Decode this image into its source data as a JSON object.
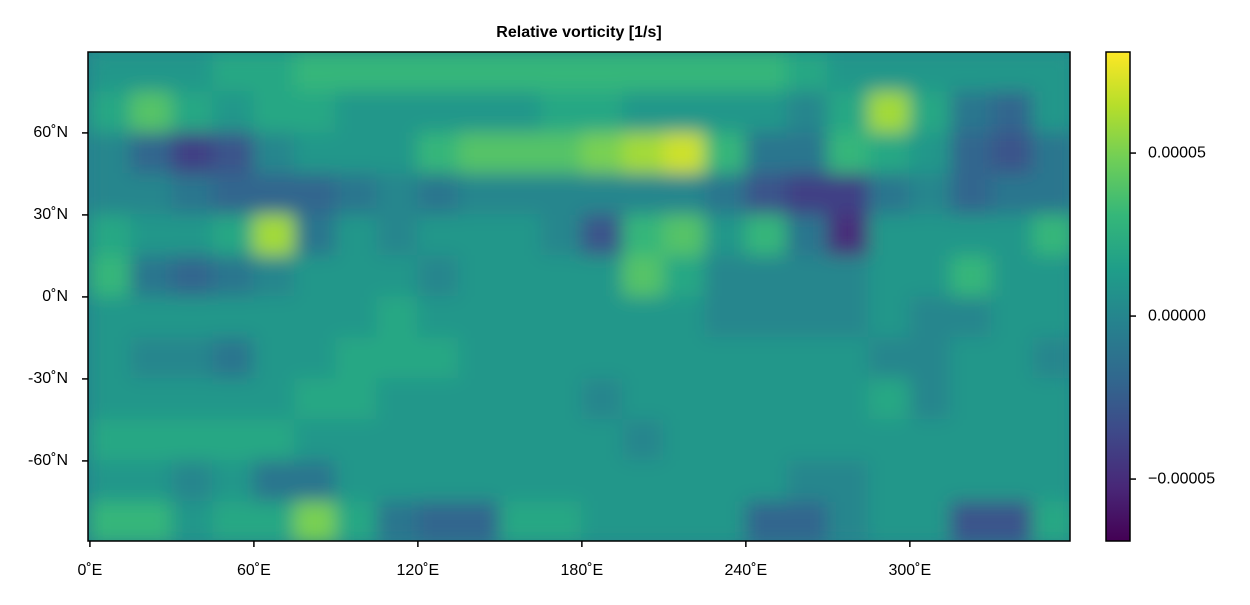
{
  "chart_data": {
    "type": "heatmap",
    "title": "Relative vorticity [1/s]",
    "x": [
      7.5,
      22.5,
      37.5,
      52.5,
      67.5,
      82.5,
      97.5,
      112.5,
      127.5,
      142.5,
      157.5,
      172.5,
      187.5,
      202.5,
      217.5,
      232.5,
      247.5,
      262.5,
      277.5,
      292.5,
      307.5,
      322.5,
      337.5,
      352.5
    ],
    "y": [
      82.5,
      67.5,
      52.5,
      37.5,
      22.5,
      7.5,
      -7.5,
      -22.5,
      -37.5,
      -52.5,
      -67.5,
      -82.5
    ],
    "values": [
      [
        1e-05,
        1e-05,
        1e-05,
        2e-05,
        2e-05,
        3e-05,
        3e-05,
        3e-05,
        3e-05,
        3e-05,
        3e-05,
        3e-05,
        3e-05,
        3e-05,
        3e-05,
        3e-05,
        3e-05,
        2e-05,
        1e-05,
        1e-05,
        1e-05,
        1e-05,
        1e-05,
        1e-05
      ],
      [
        2e-05,
        4e-05,
        2e-05,
        1e-05,
        2e-05,
        2e-05,
        1e-05,
        1e-05,
        1e-05,
        1e-05,
        1e-05,
        2e-05,
        2e-05,
        1e-05,
        1e-05,
        1e-05,
        1e-05,
        0,
        2e-05,
        6e-05,
        2e-05,
        -1e-05,
        -2e-05,
        1e-05
      ],
      [
        0,
        -2e-05,
        -4e-05,
        -3e-05,
        0,
        1e-05,
        1e-05,
        1e-05,
        3e-05,
        4e-05,
        4e-05,
        4e-05,
        5e-05,
        6e-05,
        7e-05,
        3e-05,
        -1e-05,
        -1e-05,
        3e-05,
        2e-05,
        1e-05,
        -2e-05,
        -3e-05,
        -1e-05
      ],
      [
        0,
        0,
        -1e-05,
        -2e-05,
        -2e-05,
        -2e-05,
        -1e-05,
        0,
        -1e-05,
        0,
        0,
        0,
        0,
        0,
        0,
        -1e-05,
        -3e-05,
        -4e-05,
        -4e-05,
        -1e-05,
        0,
        -2e-05,
        -1e-05,
        -1e-05
      ],
      [
        2e-05,
        1e-05,
        1e-05,
        2e-05,
        6e-05,
        -1e-05,
        1e-05,
        0,
        1e-05,
        1e-05,
        1e-05,
        0,
        -3e-05,
        3e-05,
        4e-05,
        1e-05,
        3e-05,
        -1e-05,
        -5e-05,
        1e-05,
        1e-05,
        1e-05,
        1e-05,
        3e-05
      ],
      [
        3e-05,
        -1e-05,
        -2e-05,
        -1e-05,
        0,
        1e-05,
        1e-05,
        1e-05,
        0,
        1e-05,
        1e-05,
        1e-05,
        1e-05,
        4e-05,
        2e-05,
        0,
        0,
        0,
        0,
        1e-05,
        1e-05,
        3e-05,
        1e-05,
        1e-05
      ],
      [
        1e-05,
        1e-05,
        1e-05,
        1e-05,
        1e-05,
        1e-05,
        1e-05,
        2e-05,
        1e-05,
        1e-05,
        1e-05,
        1e-05,
        1e-05,
        1e-05,
        1e-05,
        0,
        0,
        0,
        0,
        1e-05,
        0,
        0,
        1e-05,
        1e-05
      ],
      [
        1e-05,
        0,
        0,
        -1e-05,
        1e-05,
        1e-05,
        2e-05,
        2e-05,
        2e-05,
        1e-05,
        1e-05,
        1e-05,
        1e-05,
        1e-05,
        1e-05,
        1e-05,
        1e-05,
        1e-05,
        1e-05,
        0,
        0,
        1e-05,
        1e-05,
        0
      ],
      [
        1e-05,
        1e-05,
        1e-05,
        1e-05,
        1e-05,
        2e-05,
        2e-05,
        1e-05,
        1e-05,
        1e-05,
        1e-05,
        1e-05,
        0,
        1e-05,
        1e-05,
        1e-05,
        1e-05,
        1e-05,
        1e-05,
        2e-05,
        0,
        1e-05,
        1e-05,
        1e-05
      ],
      [
        2e-05,
        2e-05,
        2e-05,
        2e-05,
        2e-05,
        1e-05,
        1e-05,
        1e-05,
        1e-05,
        1e-05,
        1e-05,
        1e-05,
        1e-05,
        0,
        1e-05,
        1e-05,
        1e-05,
        1e-05,
        1e-05,
        1e-05,
        1e-05,
        1e-05,
        1e-05,
        1e-05
      ],
      [
        1e-05,
        1e-05,
        0,
        1e-05,
        -1e-05,
        -1e-05,
        1e-05,
        1e-05,
        1e-05,
        1e-05,
        1e-05,
        1e-05,
        1e-05,
        1e-05,
        1e-05,
        1e-05,
        1e-05,
        0,
        0,
        1e-05,
        1e-05,
        1e-05,
        1e-05,
        1e-05
      ],
      [
        3e-05,
        3e-05,
        1e-05,
        2e-05,
        2e-05,
        5e-05,
        2e-05,
        -1e-05,
        -2e-05,
        -2e-05,
        2e-05,
        2e-05,
        1e-05,
        1e-05,
        1e-05,
        1e-05,
        -2e-05,
        -2e-05,
        0,
        1e-05,
        1e-05,
        -3e-05,
        -3e-05,
        2e-05
      ]
    ],
    "xlim": [
      -0.7,
      358.6
    ],
    "ylim": [
      -89.3,
      89.6
    ],
    "xticks": [
      {
        "value": 0,
        "label": "0˚E"
      },
      {
        "value": 60,
        "label": "60˚E"
      },
      {
        "value": 120,
        "label": "120˚E"
      },
      {
        "value": 180,
        "label": "180˚E"
      },
      {
        "value": 240,
        "label": "240˚E"
      },
      {
        "value": 300,
        "label": "300˚E"
      }
    ],
    "yticks": [
      {
        "value": -60,
        "label": "-60˚N"
      },
      {
        "value": -30,
        "label": "-30˚N"
      },
      {
        "value": 0,
        "label": "0˚N"
      },
      {
        "value": 30,
        "label": "30˚N"
      },
      {
        "value": 60,
        "label": "60˚N"
      }
    ],
    "colorbar": {
      "clim": [
        -6.9e-05,
        8.1e-05
      ],
      "ticks": [
        {
          "value": -5e-05,
          "label": "−0.00005"
        },
        {
          "value": 0,
          "label": "0.00000"
        },
        {
          "value": 5e-05,
          "label": "0.00005"
        }
      ],
      "colormap": [
        "#440154",
        "#482878",
        "#3e4989",
        "#31688e",
        "#26828e",
        "#1f9e89",
        "#35b779",
        "#6ece58",
        "#b5de2b",
        "#fde725"
      ]
    }
  }
}
